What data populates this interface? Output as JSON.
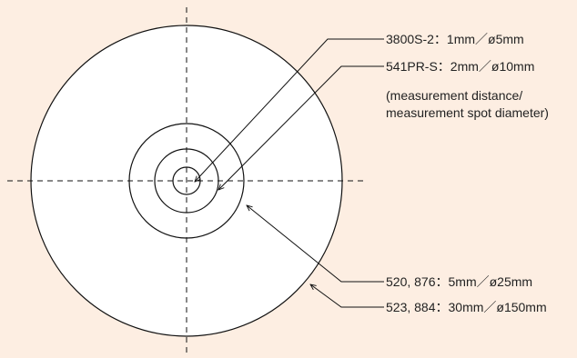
{
  "colors": {
    "background": "#fdeee2",
    "circle_fill": "#ffffff",
    "stroke": "#111111",
    "text": "#222222"
  },
  "diagram": {
    "spots": [
      {
        "label": "3800S-2：1mm／ø5mm"
      },
      {
        "label": "541PR-S：2mm／ø10mm"
      },
      {
        "label": "520, 876：5mm／ø25mm"
      },
      {
        "label": "523, 884：30mm／ø150mm"
      }
    ],
    "note_line1": "(measurement distance/",
    "note_line2": "measurement spot diameter)"
  }
}
